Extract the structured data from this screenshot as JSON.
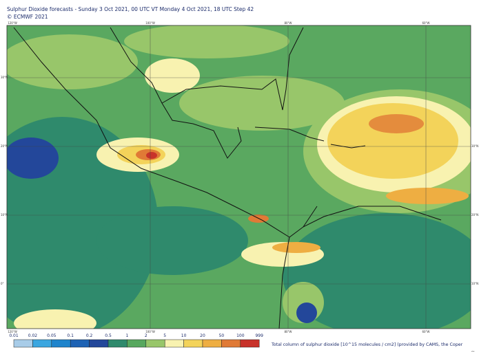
{
  "header": {
    "title": "Sulphur Dioxide forecasts - Sunday 3 Oct 2021, 00 UTC VT Monday 4 Oct 2021, 18 UTC Step 42",
    "copyright": "© ECMWF 2021"
  },
  "map": {
    "lon_labels": [
      "120°W",
      "100°W",
      "80°W",
      "60°W"
    ],
    "lat_labels": [
      "30°N",
      "20°N",
      "10°N",
      "0°"
    ]
  },
  "legend": {
    "boundaries": [
      "0.01",
      "0.02",
      "0.05",
      "0.1",
      "0.2",
      "0.5",
      "1",
      "2",
      "5",
      "10",
      "20",
      "50",
      "100",
      "999"
    ],
    "colors": [
      "#a8cce8",
      "#3aa6e0",
      "#1e84cc",
      "#1d62b4",
      "#23479a",
      "#2f8a6c",
      "#57a85e",
      "#98c66a",
      "#f8f2b0",
      "#f3d35a",
      "#eeae42",
      "#e07a36",
      "#c8322a",
      "#8e1a22"
    ],
    "caption": "Total column of sulphur dioxide [10^15 molecules / cm2] (provided by CAMS, the Coper"
  }
}
